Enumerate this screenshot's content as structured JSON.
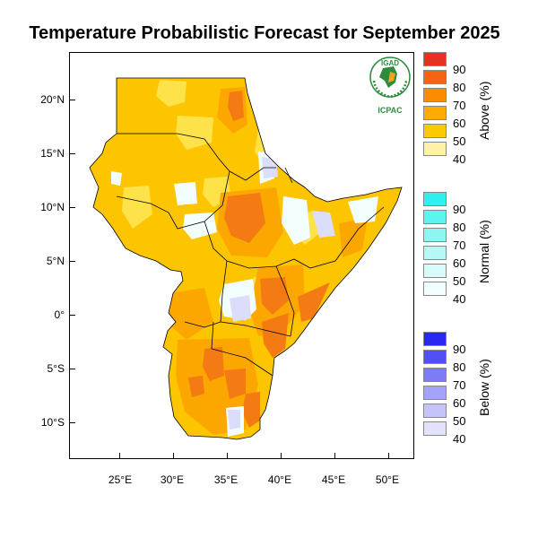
{
  "title": "Temperature Probabilistic Forecast for September 2025",
  "logo": {
    "text_top": "IGAD",
    "text_bottom": "ICPAC",
    "icon": "igad-icpac-emblem-icon",
    "color_green": "#2e8b3e",
    "color_orange": "#f7a21b"
  },
  "axes": {
    "lat_ticks": [
      "20°N",
      "15°N",
      "10°N",
      "5°N",
      "0°",
      "5°S",
      "10°S"
    ],
    "lon_ticks": [
      "25°E",
      "30°E",
      "35°E",
      "40°E",
      "45°E",
      "50°E"
    ]
  },
  "legend": {
    "above": {
      "title": "Above (%)",
      "levels": [
        "90",
        "80",
        "70",
        "60",
        "50",
        "40"
      ],
      "colors": [
        "#e6321e",
        "#f46414",
        "#fb8c00",
        "#fdab00",
        "#fdca00",
        "#fff2a8"
      ]
    },
    "normal": {
      "title": "Normal (%)",
      "levels": [
        "90",
        "80",
        "70",
        "60",
        "50",
        "40"
      ],
      "colors": [
        "#2ef0ef",
        "#5ff3f0",
        "#8ef6f2",
        "#b6f8f5",
        "#d8fbf9",
        "#effefe"
      ]
    },
    "below": {
      "title": "Below (%)",
      "levels": [
        "90",
        "80",
        "70",
        "60",
        "50",
        "40"
      ],
      "colors": [
        "#2828f0",
        "#5050f4",
        "#7c7cf6",
        "#a3a3f8",
        "#c4c4fa",
        "#e2e2fd"
      ]
    }
  },
  "map_colors": {
    "above_50": "#fdc500",
    "above_60": "#fca700",
    "above_70": "#f47a14",
    "above_40": "#fde24a",
    "normal": "#f2fefe",
    "below_40": "#dcdcfb",
    "ocean": "#ffffff",
    "border": "#000000"
  }
}
